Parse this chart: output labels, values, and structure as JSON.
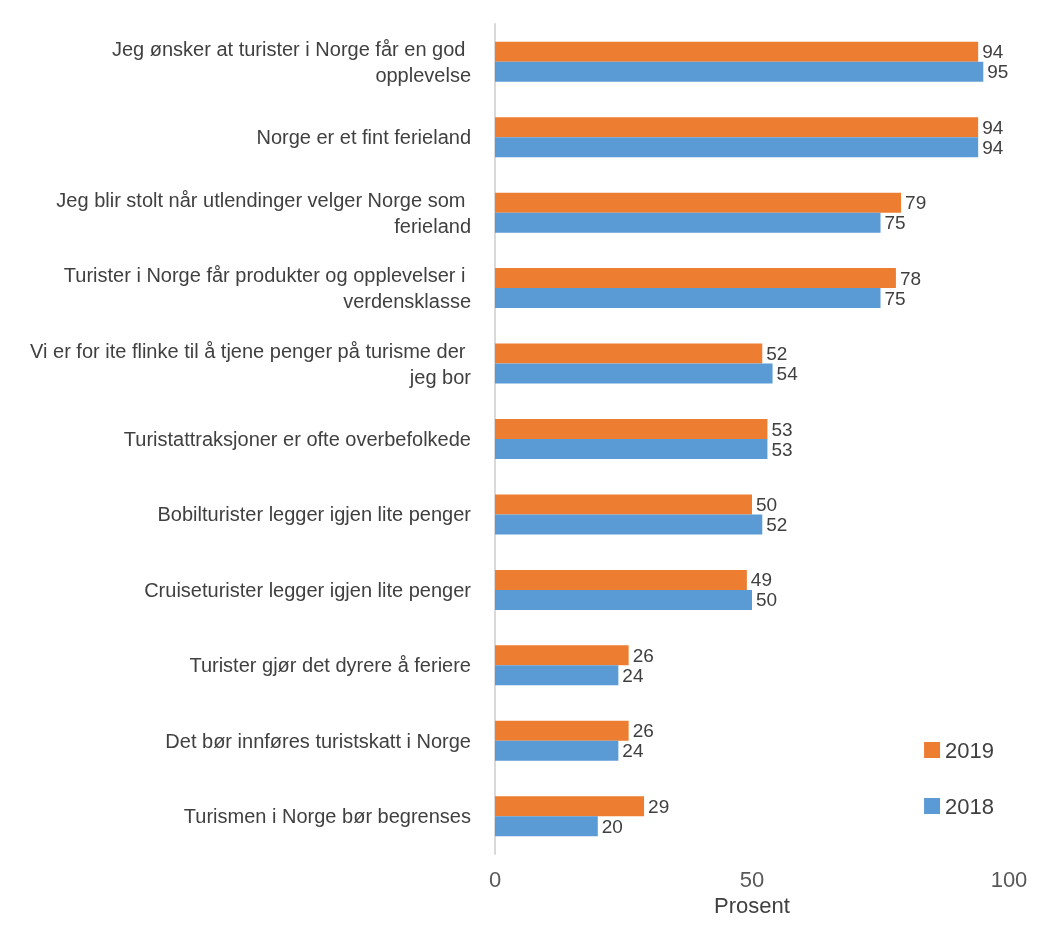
{
  "chart_data": {
    "type": "bar",
    "orientation": "horizontal",
    "xlabel": "Prosent",
    "categories": [
      "Jeg ønsker at turister i Norge får en god opplevelse",
      "Norge er et fint ferieland",
      "Jeg blir stolt når utlendinger velger Norge som ferieland",
      "Turister i Norge får produkter og opplevelser i verdensklasse",
      "Vi er for ite flinke til å tjene penger på turisme der jeg bor",
      "Turistattraksjoner er ofte overbefolkede",
      "Bobilturister legger igjen lite penger",
      "Cruiseturister legger igjen lite penger",
      "Turister gjør det dyrere å feriere",
      "Det bør innføres turistskatt i Norge",
      "Turismen i Norge bør begrenses"
    ],
    "series": [
      {
        "name": "2019",
        "color": "#ed7d31",
        "values": [
          94,
          94,
          79,
          78,
          52,
          53,
          50,
          49,
          26,
          26,
          29
        ]
      },
      {
        "name": "2018",
        "color": "#5b9bd5",
        "values": [
          95,
          94,
          75,
          75,
          54,
          53,
          52,
          50,
          24,
          24,
          20
        ]
      }
    ],
    "xlim": [
      0,
      100
    ],
    "xticks": [
      0,
      50,
      100
    ],
    "grid": false,
    "legend": "bottom right",
    "data_labels": true
  }
}
